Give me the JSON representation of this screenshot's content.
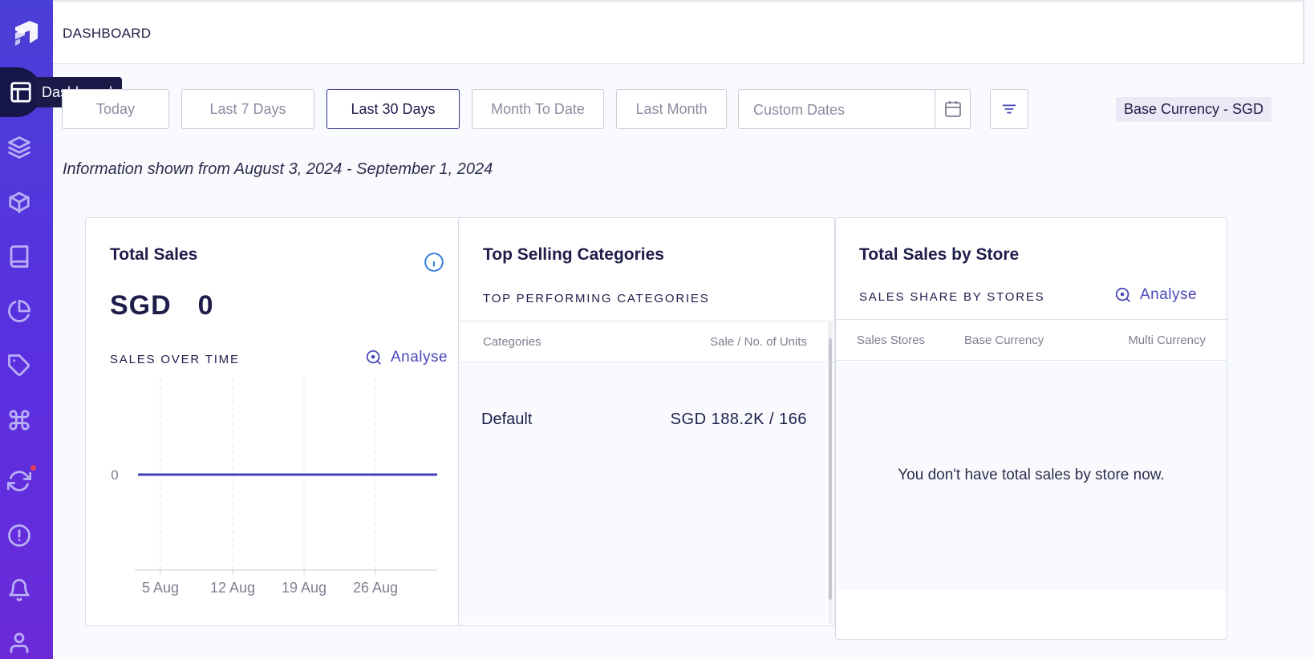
{
  "sidebar": {
    "tooltip": "Dashboard",
    "items": [
      {
        "icon": "dashboard-icon"
      },
      {
        "icon": "layers-icon"
      },
      {
        "icon": "box-icon"
      },
      {
        "icon": "book-icon"
      },
      {
        "icon": "pie-chart-icon"
      },
      {
        "icon": "tag-icon"
      },
      {
        "icon": "command-icon"
      },
      {
        "icon": "refresh-icon"
      },
      {
        "icon": "alert-circle-icon"
      },
      {
        "icon": "bell-icon"
      },
      {
        "icon": "user-icon"
      }
    ],
    "notification_color": "#e0405c"
  },
  "header": {
    "title": "DASHBOARD"
  },
  "filters": {
    "ranges": [
      "Today",
      "Last 7 Days",
      "Last 30 Days",
      "Month To Date",
      "Last Month"
    ],
    "selected": "Last 30 Days",
    "custom_dates_placeholder": "Custom Dates",
    "base_currency": "Base Currency - SGD"
  },
  "info_line": "Information shown from August 3, 2024 - September 1, 2024",
  "total_sales": {
    "title": "Total Sales",
    "value": "SGD  0",
    "section": "SALES OVER TIME",
    "analyse": "Analyse",
    "chart": {
      "y_tick": "0",
      "x_ticks": [
        "5 Aug",
        "12 Aug",
        "19 Aug",
        "26 Aug"
      ]
    }
  },
  "chart_data": {
    "type": "line",
    "title": "SALES OVER TIME",
    "xlabel": "",
    "ylabel": "",
    "categories": [
      "5 Aug",
      "12 Aug",
      "19 Aug",
      "26 Aug"
    ],
    "values": [
      0,
      0,
      0,
      0
    ],
    "y_ticks": [
      "0"
    ],
    "grid": "vertical dashed",
    "line_color": "#3f3fb8"
  },
  "top_categories": {
    "title": "Top Selling Categories",
    "section": "TOP PERFORMING CATEGORIES",
    "columns": [
      "Categories",
      "Sale / No. of Units"
    ],
    "rows": [
      {
        "category": "Default",
        "value": "SGD 188.2K / 166"
      }
    ]
  },
  "store_sales": {
    "title": "Total Sales by Store",
    "section": "SALES SHARE BY STORES",
    "analyse": "Analyse",
    "columns": [
      "Sales Stores",
      "Base Currency",
      "Multi Currency"
    ],
    "empty_message": "You don't have total sales by store now."
  }
}
